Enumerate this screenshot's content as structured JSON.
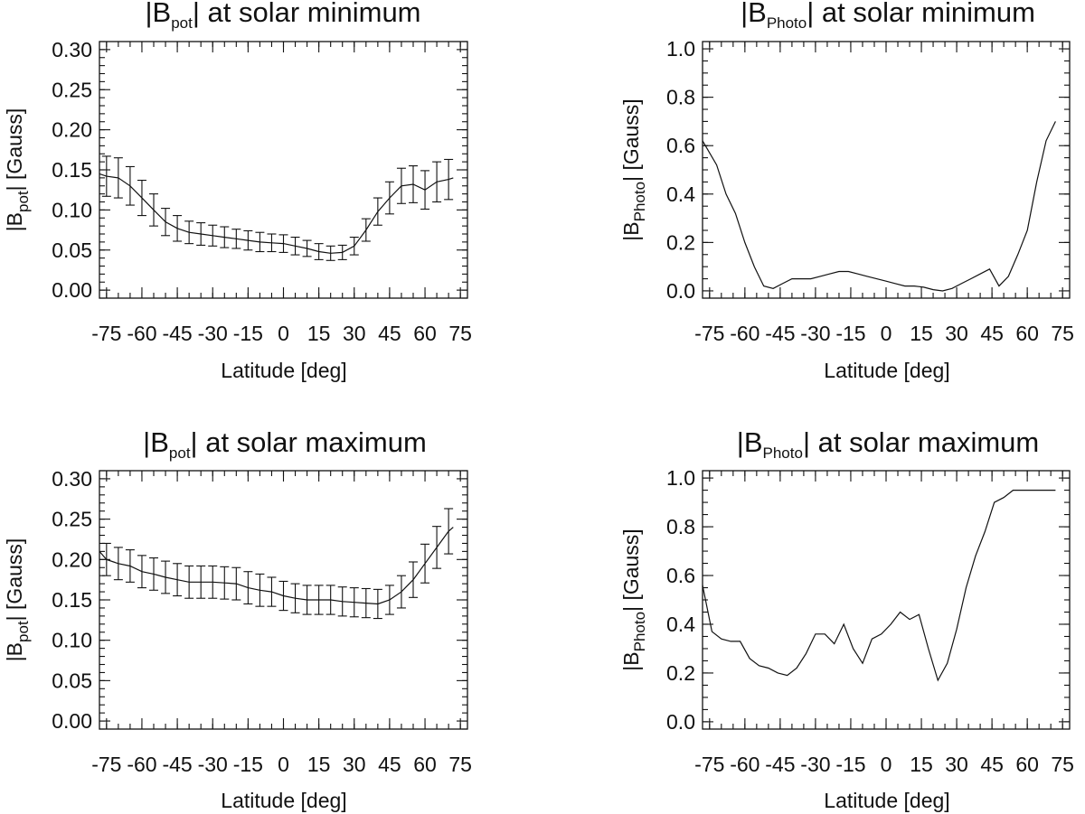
{
  "chart_data": [
    {
      "id": "bpot-min",
      "type": "line",
      "error_bars": true,
      "title": {
        "pre": "|B",
        "sub": "pot",
        "post": "| at solar minimum"
      },
      "xlabel": "Latitude [deg]",
      "ylabel": {
        "pre": "|B",
        "sub": "pot",
        "post": "| [Gauss]"
      },
      "xlim": [
        -78,
        78
      ],
      "ylim": [
        -0.01,
        0.31
      ],
      "xticks": [
        -75,
        -60,
        -45,
        -30,
        -15,
        0,
        15,
        30,
        45,
        60,
        75
      ],
      "xtick_labels": [
        "-75",
        "-60",
        "-45",
        "-30",
        "-15",
        "0",
        "15",
        "30",
        "45",
        "60",
        "75"
      ],
      "yticks": [
        0.0,
        0.05,
        0.1,
        0.15,
        0.2,
        0.25,
        0.3
      ],
      "ytick_labels": [
        "0.00",
        "0.05",
        "0.10",
        "0.15",
        "0.20",
        "0.25",
        "0.30"
      ],
      "y_minor_step": 0.01,
      "x_minor_step": 5,
      "series": [
        {
          "name": "|B_pot|",
          "x": [
            -78,
            -75,
            -70,
            -65,
            -60,
            -55,
            -50,
            -45,
            -40,
            -35,
            -30,
            -25,
            -20,
            -15,
            -10,
            -5,
            0,
            5,
            10,
            15,
            20,
            25,
            30,
            35,
            40,
            45,
            50,
            55,
            60,
            65,
            70,
            72
          ],
          "y": [
            0.145,
            0.142,
            0.14,
            0.13,
            0.115,
            0.1,
            0.085,
            0.077,
            0.072,
            0.07,
            0.068,
            0.066,
            0.064,
            0.062,
            0.06,
            0.059,
            0.058,
            0.055,
            0.052,
            0.048,
            0.046,
            0.047,
            0.055,
            0.075,
            0.098,
            0.115,
            0.13,
            0.132,
            0.125,
            0.135,
            0.138,
            0.14
          ],
          "error": [
            0.025,
            0.025,
            0.025,
            0.024,
            0.022,
            0.02,
            0.017,
            0.016,
            0.014,
            0.014,
            0.013,
            0.013,
            0.012,
            0.012,
            0.012,
            0.011,
            0.011,
            0.011,
            0.01,
            0.01,
            0.009,
            0.009,
            0.011,
            0.014,
            0.017,
            0.02,
            0.022,
            0.023,
            0.024,
            0.025,
            0.025,
            0.025
          ]
        }
      ]
    },
    {
      "id": "bphoto-min",
      "type": "line",
      "error_bars": false,
      "title": {
        "pre": "|B",
        "sub": "Photo",
        "post": "| at solar minimum"
      },
      "xlabel": "Latitude [deg]",
      "ylabel": {
        "pre": "|B",
        "sub": "Photo",
        "post": "| [Gauss]"
      },
      "xlim": [
        -78,
        78
      ],
      "ylim": [
        -0.03,
        1.03
      ],
      "xticks": [
        -75,
        -60,
        -45,
        -30,
        -15,
        0,
        15,
        30,
        45,
        60,
        75
      ],
      "xtick_labels": [
        "-75",
        "-60",
        "-45",
        "-30",
        "-15",
        "0",
        "15",
        "30",
        "45",
        "60",
        "75"
      ],
      "yticks": [
        0.0,
        0.2,
        0.4,
        0.6,
        0.8,
        1.0
      ],
      "ytick_labels": [
        "0.0",
        "0.2",
        "0.4",
        "0.6",
        "0.8",
        "1.0"
      ],
      "y_minor_step": 0.05,
      "x_minor_step": 5,
      "series": [
        {
          "name": "|B_Photo|",
          "x": [
            -78,
            -72,
            -68,
            -64,
            -60,
            -56,
            -52,
            -48,
            -44,
            -40,
            -36,
            -32,
            -28,
            -24,
            -20,
            -16,
            -12,
            -8,
            -4,
            0,
            4,
            8,
            12,
            16,
            20,
            24,
            28,
            32,
            36,
            40,
            44,
            48,
            52,
            56,
            60,
            64,
            68,
            72
          ],
          "y": [
            0.62,
            0.52,
            0.4,
            0.32,
            0.2,
            0.1,
            0.02,
            0.01,
            0.03,
            0.05,
            0.05,
            0.05,
            0.06,
            0.07,
            0.08,
            0.08,
            0.07,
            0.06,
            0.05,
            0.04,
            0.03,
            0.02,
            0.02,
            0.015,
            0.005,
            0.0,
            0.01,
            0.03,
            0.05,
            0.07,
            0.09,
            0.02,
            0.06,
            0.15,
            0.25,
            0.45,
            0.62,
            0.7
          ]
        }
      ]
    },
    {
      "id": "bpot-max",
      "type": "line",
      "error_bars": true,
      "title": {
        "pre": "|B",
        "sub": "pot",
        "post": "| at solar maximum"
      },
      "xlabel": "Latitude [deg]",
      "ylabel": {
        "pre": "|B",
        "sub": "pot",
        "post": "| [Gauss]"
      },
      "xlim": [
        -78,
        78
      ],
      "ylim": [
        -0.01,
        0.31
      ],
      "xticks": [
        -75,
        -60,
        -45,
        -30,
        -15,
        0,
        15,
        30,
        45,
        60,
        75
      ],
      "xtick_labels": [
        "-75",
        "-60",
        "-45",
        "-30",
        "-15",
        "0",
        "15",
        "30",
        "45",
        "60",
        "75"
      ],
      "yticks": [
        0.0,
        0.05,
        0.1,
        0.15,
        0.2,
        0.25,
        0.3
      ],
      "ytick_labels": [
        "0.00",
        "0.05",
        "0.10",
        "0.15",
        "0.20",
        "0.25",
        "0.30"
      ],
      "y_minor_step": 0.01,
      "x_minor_step": 5,
      "series": [
        {
          "name": "|B_pot|",
          "x": [
            -78,
            -75,
            -70,
            -65,
            -60,
            -55,
            -50,
            -45,
            -40,
            -35,
            -30,
            -25,
            -20,
            -15,
            -10,
            -5,
            0,
            5,
            10,
            15,
            20,
            25,
            30,
            35,
            40,
            45,
            50,
            55,
            60,
            65,
            70,
            72
          ],
          "y": [
            0.21,
            0.2,
            0.195,
            0.192,
            0.185,
            0.182,
            0.178,
            0.175,
            0.172,
            0.172,
            0.172,
            0.171,
            0.17,
            0.165,
            0.162,
            0.16,
            0.155,
            0.152,
            0.15,
            0.15,
            0.15,
            0.148,
            0.147,
            0.146,
            0.145,
            0.15,
            0.16,
            0.175,
            0.195,
            0.215,
            0.235,
            0.24
          ],
          "error": [
            0.02,
            0.02,
            0.02,
            0.02,
            0.02,
            0.02,
            0.02,
            0.02,
            0.02,
            0.02,
            0.02,
            0.02,
            0.02,
            0.02,
            0.02,
            0.018,
            0.018,
            0.018,
            0.018,
            0.018,
            0.018,
            0.018,
            0.018,
            0.018,
            0.018,
            0.018,
            0.02,
            0.022,
            0.024,
            0.026,
            0.028,
            0.028
          ]
        }
      ]
    },
    {
      "id": "bphoto-max",
      "type": "line",
      "error_bars": false,
      "title": {
        "pre": "|B",
        "sub": "Photo",
        "post": "| at solar maximum"
      },
      "xlabel": "Latitude [deg]",
      "ylabel": {
        "pre": "|B",
        "sub": "Photo",
        "post": "| [Gauss]"
      },
      "xlim": [
        -78,
        78
      ],
      "ylim": [
        -0.03,
        1.03
      ],
      "xticks": [
        -75,
        -60,
        -45,
        -30,
        -15,
        0,
        15,
        30,
        45,
        60,
        75
      ],
      "xtick_labels": [
        "-75",
        "-60",
        "-45",
        "-30",
        "-15",
        "0",
        "15",
        "30",
        "45",
        "60",
        "75"
      ],
      "yticks": [
        0.0,
        0.2,
        0.4,
        0.6,
        0.8,
        1.0
      ],
      "ytick_labels": [
        "0.0",
        "0.2",
        "0.4",
        "0.6",
        "0.8",
        "1.0"
      ],
      "y_minor_step": 0.05,
      "x_minor_step": 5,
      "series": [
        {
          "name": "|B_Photo|",
          "x": [
            -78,
            -74,
            -70,
            -66,
            -62,
            -58,
            -54,
            -50,
            -46,
            -42,
            -38,
            -34,
            -30,
            -26,
            -22,
            -18,
            -14,
            -10,
            -6,
            -2,
            2,
            6,
            10,
            14,
            18,
            22,
            26,
            30,
            34,
            38,
            42,
            46,
            50,
            54,
            58,
            62,
            66,
            70,
            72
          ],
          "y": [
            0.56,
            0.37,
            0.34,
            0.33,
            0.33,
            0.26,
            0.23,
            0.22,
            0.2,
            0.19,
            0.22,
            0.28,
            0.36,
            0.36,
            0.32,
            0.4,
            0.3,
            0.24,
            0.34,
            0.36,
            0.4,
            0.45,
            0.42,
            0.44,
            0.3,
            0.17,
            0.24,
            0.38,
            0.55,
            0.68,
            0.78,
            0.9,
            0.92,
            0.95,
            0.95,
            0.95,
            0.95,
            0.95,
            0.95
          ]
        }
      ]
    }
  ]
}
